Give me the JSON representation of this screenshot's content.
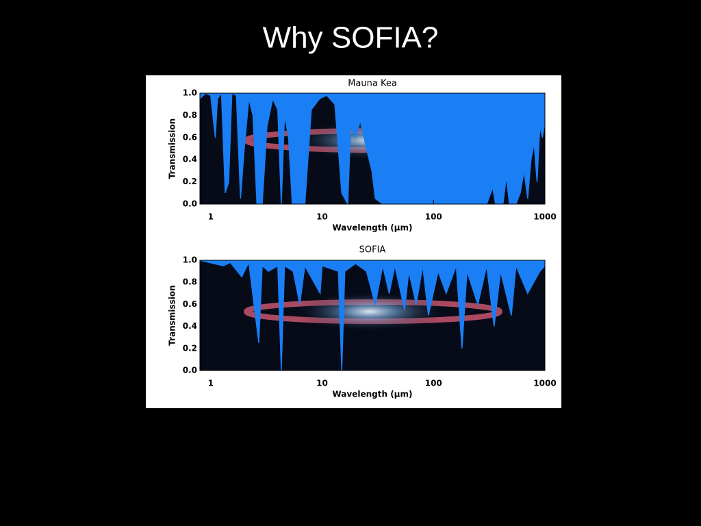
{
  "slide": {
    "title": "Why SOFIA?"
  },
  "chart_data": [
    {
      "type": "area",
      "title": "Mauna Kea",
      "x_label": "Wavelength (μm)",
      "y_label": "Transmission",
      "x_scale": "log",
      "color": "#1a7ef5",
      "xlim": [
        0.8,
        1000
      ],
      "xticks": [
        1,
        10,
        100,
        1000
      ],
      "ylim": [
        0,
        1
      ],
      "yticks": [
        {
          "value": 0,
          "label": "0.0"
        },
        0.2,
        0.4,
        0.6,
        0.8,
        {
          "value": 1,
          "label": "1.0"
        }
      ],
      "x": [
        0.8,
        0.9,
        1.0,
        1.1,
        1.15,
        1.25,
        1.35,
        1.45,
        1.55,
        1.7,
        1.85,
        2.0,
        2.2,
        2.4,
        2.6,
        2.9,
        3.2,
        3.6,
        4.0,
        4.3,
        4.6,
        5.0,
        5.4,
        7.0,
        8.0,
        9.5,
        11,
        13,
        14,
        15,
        17,
        18,
        20,
        22,
        25,
        28,
        30,
        35,
        50,
        100,
        200,
        300,
        340,
        360,
        420,
        450,
        480,
        550,
        600,
        650,
        700,
        750,
        800,
        850,
        900,
        950,
        1000
      ],
      "series": [
        {
          "name": "Mauna Kea",
          "values": [
            0.95,
            1.0,
            0.98,
            0.6,
            0.95,
            1.0,
            0.1,
            0.2,
            1.0,
            0.98,
            0.05,
            0.5,
            0.95,
            0.8,
            0.0,
            0.0,
            0.7,
            0.95,
            0.85,
            0.0,
            0.8,
            0.6,
            0.0,
            0.0,
            0.85,
            0.95,
            0.98,
            0.9,
            0.5,
            0.1,
            0.0,
            0.7,
            0.6,
            0.75,
            0.5,
            0.3,
            0.05,
            0.0,
            0.0,
            0.0,
            0.0,
            0.0,
            0.15,
            0.0,
            0.0,
            0.25,
            0.0,
            0.0,
            0.1,
            0.3,
            0.05,
            0.4,
            0.55,
            0.2,
            0.7,
            0.6,
            0.75
          ]
        }
      ]
    },
    {
      "type": "area",
      "title": "SOFIA",
      "x_label": "Wavelength (μm)",
      "y_label": "Transmission",
      "x_scale": "log",
      "color": "#1a7ef5",
      "xlim": [
        0.8,
        1000
      ],
      "xticks": [
        1,
        10,
        100,
        1000
      ],
      "ylim": [
        0,
        1
      ],
      "yticks": [
        {
          "value": 0,
          "label": "0.0"
        },
        0.2,
        0.4,
        0.6,
        0.8,
        {
          "value": 1,
          "label": "1.0"
        }
      ],
      "x": [
        0.8,
        1.3,
        1.5,
        1.9,
        2.2,
        2.7,
        2.9,
        3.3,
        4.0,
        4.3,
        4.6,
        5.5,
        6.3,
        7,
        9.6,
        10,
        14,
        15,
        16,
        20,
        25,
        30,
        35,
        40,
        45,
        55,
        60,
        70,
        80,
        90,
        110,
        130,
        160,
        180,
        200,
        250,
        300,
        350,
        400,
        500,
        550,
        700,
        900,
        1000
      ],
      "series": [
        {
          "name": "SOFIA",
          "values": [
            1.0,
            0.95,
            0.98,
            0.85,
            0.98,
            0.25,
            0.95,
            0.9,
            0.95,
            0.0,
            0.95,
            0.9,
            0.6,
            0.95,
            0.7,
            0.95,
            0.9,
            0.0,
            0.9,
            0.97,
            0.9,
            0.6,
            0.95,
            0.7,
            0.95,
            0.55,
            0.9,
            0.6,
            0.95,
            0.5,
            0.9,
            0.7,
            0.95,
            0.2,
            0.9,
            0.6,
            0.95,
            0.4,
            0.9,
            0.5,
            0.95,
            0.7,
            0.9,
            0.95
          ]
        }
      ]
    }
  ]
}
